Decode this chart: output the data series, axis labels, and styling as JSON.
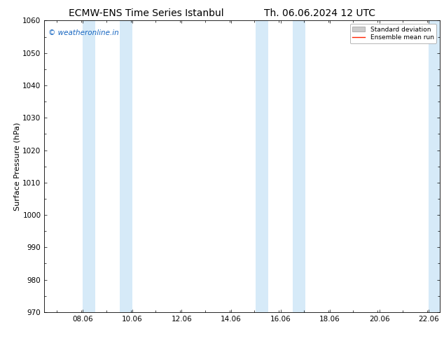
{
  "title": "ECMW-ENS Time Series Istanbul",
  "title2": "Th. 06.06.2024 12 UTC",
  "ylabel": "Surface Pressure (hPa)",
  "ylim": [
    970,
    1060
  ],
  "yticks": [
    970,
    980,
    990,
    1000,
    1010,
    1020,
    1030,
    1040,
    1050,
    1060
  ],
  "xlim": [
    6.5,
    22.5
  ],
  "xticks": [
    8.06,
    10.06,
    12.06,
    14.06,
    16.06,
    18.06,
    20.06,
    22.06
  ],
  "xticklabels": [
    "08.06",
    "10.06",
    "12.06",
    "14.06",
    "16.06",
    "18.06",
    "20.06",
    "22.06"
  ],
  "background_color": "#ffffff",
  "plot_bg_color": "#ffffff",
  "shaded_regions": [
    {
      "xmin": 8.06,
      "xmax": 8.56
    },
    {
      "xmin": 9.56,
      "xmax": 10.06
    },
    {
      "xmin": 15.06,
      "xmax": 15.56
    },
    {
      "xmin": 16.56,
      "xmax": 17.06
    },
    {
      "xmin": 22.06,
      "xmax": 22.5
    }
  ],
  "shaded_color": "#d6eaf8",
  "watermark_text": "© weatheronline.in",
  "watermark_color": "#1565c0",
  "legend_std_color": "#cccccc",
  "legend_mean_color": "#ff2200",
  "title_fontsize": 10,
  "axis_label_fontsize": 8,
  "tick_fontsize": 7.5
}
